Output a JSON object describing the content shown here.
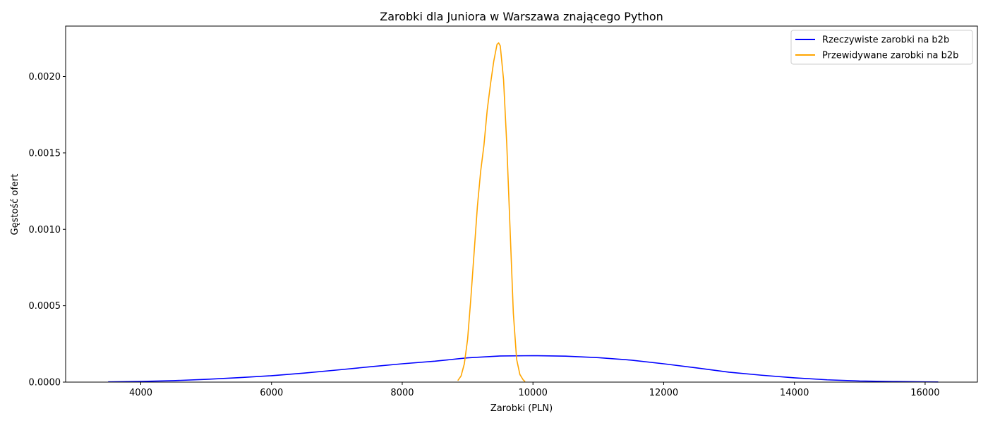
{
  "chart_data": {
    "type": "line",
    "title": "Zarobki dla Juniora w Warszawa znającego Python",
    "xlabel": "Zarobki (PLN)",
    "ylabel": "Gęstość ofert",
    "xlim": [
      2850,
      16800
    ],
    "ylim": [
      0,
      0.00233
    ],
    "x_ticks": [
      4000,
      6000,
      8000,
      10000,
      12000,
      14000,
      16000
    ],
    "y_ticks": [
      0,
      0.0005,
      0.001,
      0.0015,
      0.002
    ],
    "y_tick_labels": [
      "0.0000",
      "0.0005",
      "0.0010",
      "0.0015",
      "0.0020"
    ],
    "grid": false,
    "legend_position": "top-right",
    "series": [
      {
        "name": "Rzeczywiste zarobki na b2b",
        "color": "#0000ff",
        "x": [
          3500,
          4000,
          4500,
          5000,
          5500,
          6000,
          6500,
          7000,
          7500,
          8000,
          8500,
          9000,
          9500,
          10000,
          10500,
          11000,
          11500,
          12000,
          12500,
          13000,
          13500,
          14000,
          14500,
          15000,
          15500,
          16000,
          16200
        ],
        "y": [
          1.6e-06,
          4.5e-06,
          9.5e-06,
          1.8e-05,
          2.9e-05,
          4.2e-05,
          5.9e-05,
          7.9e-05,
          0.0001,
          0.00012,
          0.000137,
          0.000159,
          0.000171,
          0.000173,
          0.00017,
          0.00016,
          0.000144,
          0.00012,
          9.3e-05,
          6.5e-05,
          4.5e-05,
          2.8e-05,
          1.5e-05,
          7e-06,
          4e-06,
          1.3e-06,
          8e-07
        ]
      },
      {
        "name": "Przewidywane zarobki na b2b",
        "color": "#ffa500",
        "x": [
          8850,
          8900,
          8950,
          9000,
          9050,
          9100,
          9150,
          9200,
          9250,
          9300,
          9350,
          9400,
          9450,
          9475,
          9500,
          9550,
          9600,
          9650,
          9700,
          9750,
          9800,
          9850,
          9880
        ],
        "y": [
          1e-05,
          4e-05,
          0.00012,
          0.00028,
          0.00055,
          0.00085,
          0.00115,
          0.00138,
          0.00155,
          0.00178,
          0.00195,
          0.0021,
          0.00221,
          0.00222,
          0.0022,
          0.00198,
          0.00155,
          0.001,
          0.00045,
          0.00015,
          5e-05,
          1.5e-05,
          3e-06
        ]
      }
    ]
  }
}
